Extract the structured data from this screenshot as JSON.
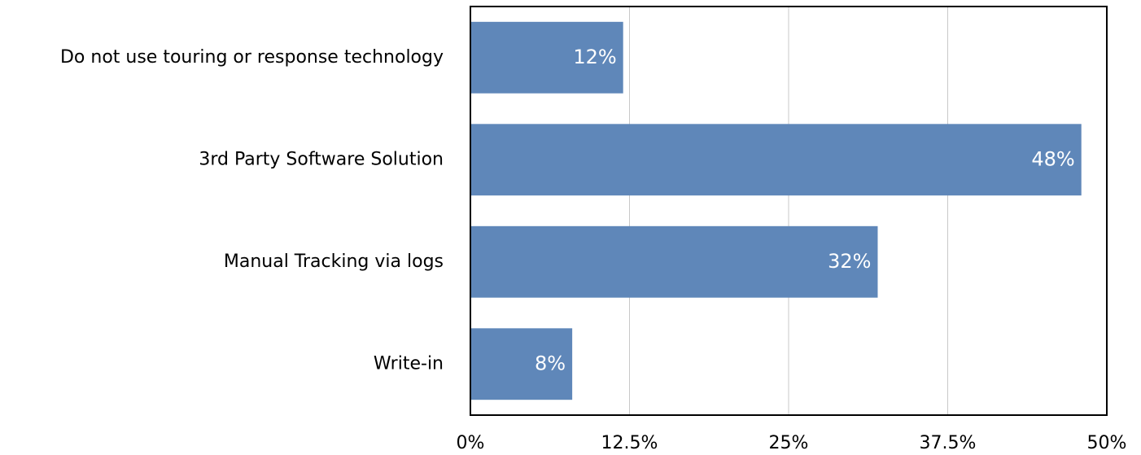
{
  "chart_data": {
    "type": "bar",
    "orientation": "horizontal",
    "categories": [
      "Do not use touring or response technology",
      "3rd Party Software Solution",
      "Manual Tracking via logs",
      "Write-in"
    ],
    "values": [
      12,
      48,
      32,
      8
    ],
    "value_labels": [
      "12%",
      "48%",
      "32%",
      "8%"
    ],
    "color": "#5f87b9",
    "xlim": [
      0,
      50
    ],
    "xticks": [
      {
        "value": 0,
        "label": "0%"
      },
      {
        "value": 12.5,
        "label": "12.5%"
      },
      {
        "value": 25,
        "label": "25%"
      },
      {
        "value": 37.5,
        "label": "37.5%"
      },
      {
        "value": 50,
        "label": "50%"
      }
    ],
    "grid": true
  }
}
